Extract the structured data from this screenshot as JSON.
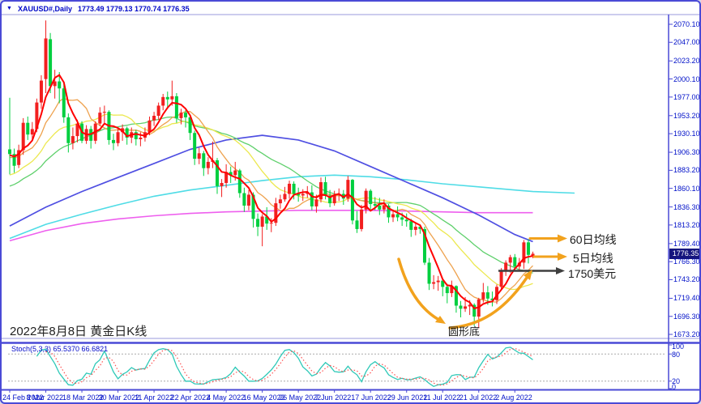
{
  "title": {
    "symbol": "XAUUSD#,Daily",
    "ohlc": "1773.49 1779.13 1770.74 1776.35"
  },
  "caption": "2022年8月8日 黄金日K线",
  "indicator_label": "Stoch(5,3,3) 65.5370 66.6821",
  "price_tag": "1776.35",
  "annotations": {
    "ma60": "60日均线",
    "ma5": "5日均线",
    "usd1750": "1750美元",
    "round_bottom": "圆形底"
  },
  "colors": {
    "up": "#f21f1f",
    "down": "#00cf3f",
    "ma5": "#ff0000",
    "ma10": "#eea24e",
    "ma20": "#ece84f",
    "ma30": "#5fd06c",
    "ma60": "#4f4fe2",
    "ma_cyan": "#4fdce6",
    "ma_magenta": "#ee5fee",
    "stoch_k": "#2fc9b8",
    "stoch_d": "#ff5050",
    "axis_text": "#0010c8",
    "frame": "#4a4ad6",
    "frame_light": "#9a9ade",
    "arrow_orange": "#f2a21d",
    "arrow_dark": "#3f3f3f",
    "tag_bg": "#15157d",
    "grid_dash": "#aaaaaa"
  },
  "axis": {
    "y_ticks": [
      "2070.10",
      "2047.00",
      "2023.20",
      "2000.10",
      "1977.00",
      "1953.20",
      "1930.10",
      "1906.30",
      "1883.20",
      "1860.10",
      "1836.30",
      "1813.20",
      "1789.40",
      "1766.30",
      "1743.20",
      "1719.40",
      "1696.30",
      "1673.20"
    ],
    "stoch_ticks": [
      {
        "label": "100",
        "v": 100
      },
      {
        "label": "80",
        "v": 80
      },
      {
        "label": "20",
        "v": 20
      },
      {
        "label": "0",
        "v": 0
      }
    ],
    "x_ticks": [
      {
        "label": "24 Feb 2022",
        "i": 0
      },
      {
        "label": "8 Mar 2022",
        "i": 8
      },
      {
        "label": "18 Mar 2022",
        "i": 16
      },
      {
        "label": "30 Mar 2022",
        "i": 24
      },
      {
        "label": "11 Apr 2022",
        "i": 32
      },
      {
        "label": "22 Apr 2022",
        "i": 40
      },
      {
        "label": "4 May 2022",
        "i": 48
      },
      {
        "label": "16 May 2022",
        "i": 56
      },
      {
        "label": "26 May 2022",
        "i": 64
      },
      {
        "label": "7 Jun 2022",
        "i": 72
      },
      {
        "label": "17 Jun 2022",
        "i": 80
      },
      {
        "label": "29 Jun 2022",
        "i": 88
      },
      {
        "label": "11 Jul 2022",
        "i": 96
      },
      {
        "label": "21 Jul 2022",
        "i": 104
      },
      {
        "label": "2 Aug 2022",
        "i": 112
      }
    ]
  },
  "chart_data": {
    "type": "candlestick+stochastic",
    "symbol": "XAUUSD",
    "timeframe": "Daily",
    "y_range": [
      1673.2,
      2070.1
    ],
    "stoch": {
      "params": "5,3,3",
      "k_last": 65.537,
      "d_last": 66.6821,
      "levels": [
        80,
        20
      ],
      "range": [
        0,
        100
      ]
    },
    "ma_periods": {
      "red": 5,
      "orange": 10,
      "yellow": 20,
      "green": 30
    },
    "pre_closes": [
      1818,
      1822,
      1816,
      1820,
      1831,
      1836,
      1841,
      1843,
      1848,
      1840,
      1845,
      1852,
      1847,
      1851,
      1856,
      1852,
      1849,
      1853,
      1858,
      1862,
      1870,
      1888,
      1898,
      1894,
      1899,
      1903,
      1898,
      1893,
      1908,
      1910
    ],
    "long_ma_index_step": 8,
    "long_ma": {
      "blue_60d": [
        1812,
        1836,
        1856,
        1874,
        1892,
        1910,
        1922,
        1928,
        1922,
        1908,
        1888,
        1868,
        1848,
        1826,
        1801,
        1792
      ],
      "cyan": [
        1796,
        1814,
        1827,
        1839,
        1850,
        1858,
        1864,
        1870,
        1875,
        1877,
        1875,
        1871,
        1866,
        1862,
        1858,
        1856
      ],
      "magenta": [
        1793,
        1806,
        1815,
        1821,
        1825,
        1828,
        1830,
        1831,
        1832,
        1832,
        1832,
        1831,
        1830,
        1829,
        1829,
        1829
      ]
    },
    "candles": [
      [
        1910,
        1976,
        1878,
        1904
      ],
      [
        1904,
        1911,
        1880,
        1889
      ],
      [
        1890,
        1916,
        1886,
        1909
      ],
      [
        1909,
        1950,
        1903,
        1944
      ],
      [
        1944,
        1952,
        1922,
        1929
      ],
      [
        1929,
        1945,
        1923,
        1936
      ],
      [
        1936,
        1975,
        1932,
        1970
      ],
      [
        1970,
        2005,
        1962,
        1998
      ],
      [
        2000,
        2075,
        1982,
        2052
      ],
      [
        2051,
        2059,
        1982,
        1991
      ],
      [
        1991,
        2012,
        1975,
        1997
      ],
      [
        1997,
        2009,
        1969,
        1988
      ],
      [
        1988,
        1994,
        1944,
        1951
      ],
      [
        1951,
        1956,
        1906,
        1918
      ],
      [
        1918,
        1938,
        1910,
        1927
      ],
      [
        1927,
        1948,
        1919,
        1943
      ],
      [
        1943,
        1946,
        1918,
        1921
      ],
      [
        1921,
        1941,
        1917,
        1936
      ],
      [
        1936,
        1940,
        1911,
        1921
      ],
      [
        1921,
        1946,
        1917,
        1943
      ],
      [
        1943,
        1964,
        1940,
        1957
      ],
      [
        1957,
        1966,
        1944,
        1958
      ],
      [
        1958,
        1960,
        1916,
        1922
      ],
      [
        1922,
        1930,
        1909,
        1918
      ],
      [
        1918,
        1938,
        1914,
        1932
      ],
      [
        1932,
        1942,
        1921,
        1937
      ],
      [
        1937,
        1939,
        1916,
        1925
      ],
      [
        1925,
        1938,
        1918,
        1932
      ],
      [
        1932,
        1935,
        1915,
        1923
      ],
      [
        1923,
        1932,
        1914,
        1925
      ],
      [
        1925,
        1938,
        1920,
        1932
      ],
      [
        1932,
        1952,
        1928,
        1947
      ],
      [
        1947,
        1958,
        1940,
        1953
      ],
      [
        1953,
        1970,
        1948,
        1966
      ],
      [
        1966,
        1981,
        1960,
        1977
      ],
      [
        1977,
        1984,
        1962,
        1974
      ],
      [
        1974,
        1998,
        1966,
        1978
      ],
      [
        1978,
        1982,
        1944,
        1950
      ],
      [
        1950,
        1962,
        1942,
        1957
      ],
      [
        1957,
        1960,
        1938,
        1951
      ],
      [
        1951,
        1954,
        1922,
        1931
      ],
      [
        1931,
        1934,
        1890,
        1898
      ],
      [
        1898,
        1912,
        1891,
        1905
      ],
      [
        1905,
        1908,
        1876,
        1886
      ],
      [
        1886,
        1900,
        1878,
        1894
      ],
      [
        1894,
        1920,
        1886,
        1896
      ],
      [
        1896,
        1899,
        1853,
        1863
      ],
      [
        1863,
        1872,
        1849,
        1867
      ],
      [
        1867,
        1891,
        1861,
        1881
      ],
      [
        1881,
        1888,
        1867,
        1877
      ],
      [
        1877,
        1894,
        1870,
        1883
      ],
      [
        1883,
        1885,
        1848,
        1854
      ],
      [
        1854,
        1861,
        1830,
        1838
      ],
      [
        1838,
        1858,
        1832,
        1852
      ],
      [
        1852,
        1855,
        1810,
        1821
      ],
      [
        1821,
        1828,
        1799,
        1811
      ],
      [
        1811,
        1827,
        1786,
        1824
      ],
      [
        1824,
        1836,
        1807,
        1815
      ],
      [
        1815,
        1822,
        1804,
        1816
      ],
      [
        1816,
        1848,
        1812,
        1841
      ],
      [
        1841,
        1852,
        1834,
        1846
      ],
      [
        1846,
        1862,
        1843,
        1853
      ],
      [
        1853,
        1870,
        1847,
        1866
      ],
      [
        1866,
        1869,
        1846,
        1853
      ],
      [
        1853,
        1861,
        1843,
        1851
      ],
      [
        1851,
        1859,
        1844,
        1853
      ],
      [
        1853,
        1863,
        1848,
        1855
      ],
      [
        1855,
        1864,
        1832,
        1837
      ],
      [
        1837,
        1852,
        1829,
        1846
      ],
      [
        1846,
        1874,
        1842,
        1868
      ],
      [
        1868,
        1875,
        1846,
        1851
      ],
      [
        1851,
        1858,
        1836,
        1841
      ],
      [
        1841,
        1857,
        1838,
        1852
      ],
      [
        1852,
        1860,
        1844,
        1853
      ],
      [
        1853,
        1858,
        1839,
        1847
      ],
      [
        1847,
        1876,
        1843,
        1871
      ],
      [
        1871,
        1872,
        1814,
        1819
      ],
      [
        1819,
        1831,
        1803,
        1808
      ],
      [
        1808,
        1839,
        1805,
        1833
      ],
      [
        1833,
        1860,
        1828,
        1857
      ],
      [
        1857,
        1859,
        1833,
        1840
      ],
      [
        1840,
        1849,
        1832,
        1838
      ],
      [
        1838,
        1848,
        1826,
        1833
      ],
      [
        1833,
        1846,
        1828,
        1838
      ],
      [
        1838,
        1840,
        1816,
        1823
      ],
      [
        1823,
        1833,
        1817,
        1827
      ],
      [
        1827,
        1837,
        1818,
        1823
      ],
      [
        1823,
        1829,
        1812,
        1820
      ],
      [
        1820,
        1828,
        1811,
        1818
      ],
      [
        1818,
        1821,
        1798,
        1807
      ],
      [
        1807,
        1816,
        1800,
        1811
      ],
      [
        1811,
        1814,
        1802,
        1808
      ],
      [
        1808,
        1811,
        1762,
        1765
      ],
      [
        1765,
        1771,
        1730,
        1738
      ],
      [
        1738,
        1749,
        1731,
        1740
      ],
      [
        1740,
        1748,
        1729,
        1742
      ],
      [
        1742,
        1745,
        1722,
        1734
      ],
      [
        1734,
        1738,
        1713,
        1726
      ],
      [
        1726,
        1742,
        1721,
        1735
      ],
      [
        1735,
        1736,
        1701,
        1710
      ],
      [
        1710,
        1716,
        1695,
        1706
      ],
      [
        1706,
        1721,
        1702,
        1709
      ],
      [
        1709,
        1717,
        1698,
        1711
      ],
      [
        1711,
        1713,
        1684,
        1696
      ],
      [
        1696,
        1720,
        1681,
        1718
      ],
      [
        1718,
        1739,
        1714,
        1727
      ],
      [
        1727,
        1735,
        1711,
        1719
      ],
      [
        1719,
        1728,
        1709,
        1717
      ],
      [
        1717,
        1737,
        1712,
        1734
      ],
      [
        1734,
        1758,
        1730,
        1755
      ],
      [
        1755,
        1768,
        1748,
        1765
      ],
      [
        1765,
        1775,
        1752,
        1772
      ],
      [
        1772,
        1776,
        1754,
        1760
      ],
      [
        1760,
        1771,
        1754,
        1765
      ],
      [
        1765,
        1794,
        1757,
        1791
      ],
      [
        1791,
        1795,
        1764,
        1775
      ],
      [
        1773.5,
        1779.1,
        1770.7,
        1776.4
      ]
    ]
  }
}
